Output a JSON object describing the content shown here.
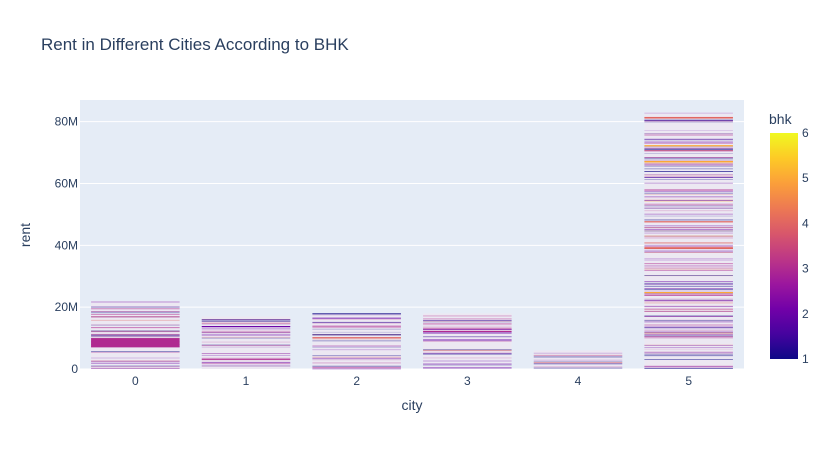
{
  "chart_data": {
    "type": "bar",
    "title": "Rent in Different Cities According to BHK",
    "xlabel": "city",
    "ylabel": "rent",
    "x_ticks": [
      "0",
      "1",
      "2",
      "3",
      "4",
      "5"
    ],
    "y_ticks": [
      "0",
      "20M",
      "40M",
      "60M",
      "80M"
    ],
    "y_tick_values": [
      0,
      20000000,
      40000000,
      60000000,
      80000000
    ],
    "ylim": [
      0,
      87000000
    ],
    "stacked": true,
    "grid": true,
    "bar_totals": [
      22000000,
      17000000,
      18000000,
      18000000,
      6000000,
      83000000
    ],
    "highlight_segments": [
      {
        "city": "0",
        "bottom": 7000000,
        "top": 10000000,
        "bhk": 3
      },
      {
        "city": "1",
        "bottom": 13600000,
        "top": 13900000,
        "bhk": 2
      },
      {
        "city": "1",
        "bottom": 3200000,
        "top": 3350000,
        "bhk": 3
      },
      {
        "city": "2",
        "bottom": 10000000,
        "top": 10300000,
        "bhk": 4
      },
      {
        "city": "3",
        "bottom": 12200000,
        "top": 12350000,
        "bhk": 3
      },
      {
        "city": "5",
        "bottom": 38800000,
        "top": 39400000,
        "bhk": 4
      },
      {
        "city": "5",
        "bottom": 81000000,
        "top": 81500000,
        "bhk": 4
      },
      {
        "city": "5",
        "bottom": 66800000,
        "top": 67300000,
        "bhk": 5
      },
      {
        "city": "5",
        "bottom": 72000000,
        "top": 72400000,
        "bhk": 5
      },
      {
        "city": "5",
        "bottom": 24500000,
        "top": 24900000,
        "bhk": 5
      },
      {
        "city": "5",
        "bottom": 47500000,
        "top": 47800000,
        "bhk": 4
      }
    ],
    "colorbar": {
      "title": "bhk",
      "min": 1,
      "max": 6,
      "ticks": [
        "1",
        "2",
        "3",
        "4",
        "5",
        "6"
      ],
      "colors": [
        "#0d0887",
        "#46039f",
        "#7201a8",
        "#9c179e",
        "#bd3786",
        "#d8576b",
        "#ed7953",
        "#fb9f3a",
        "#fdca26",
        "#f0f921"
      ]
    }
  }
}
